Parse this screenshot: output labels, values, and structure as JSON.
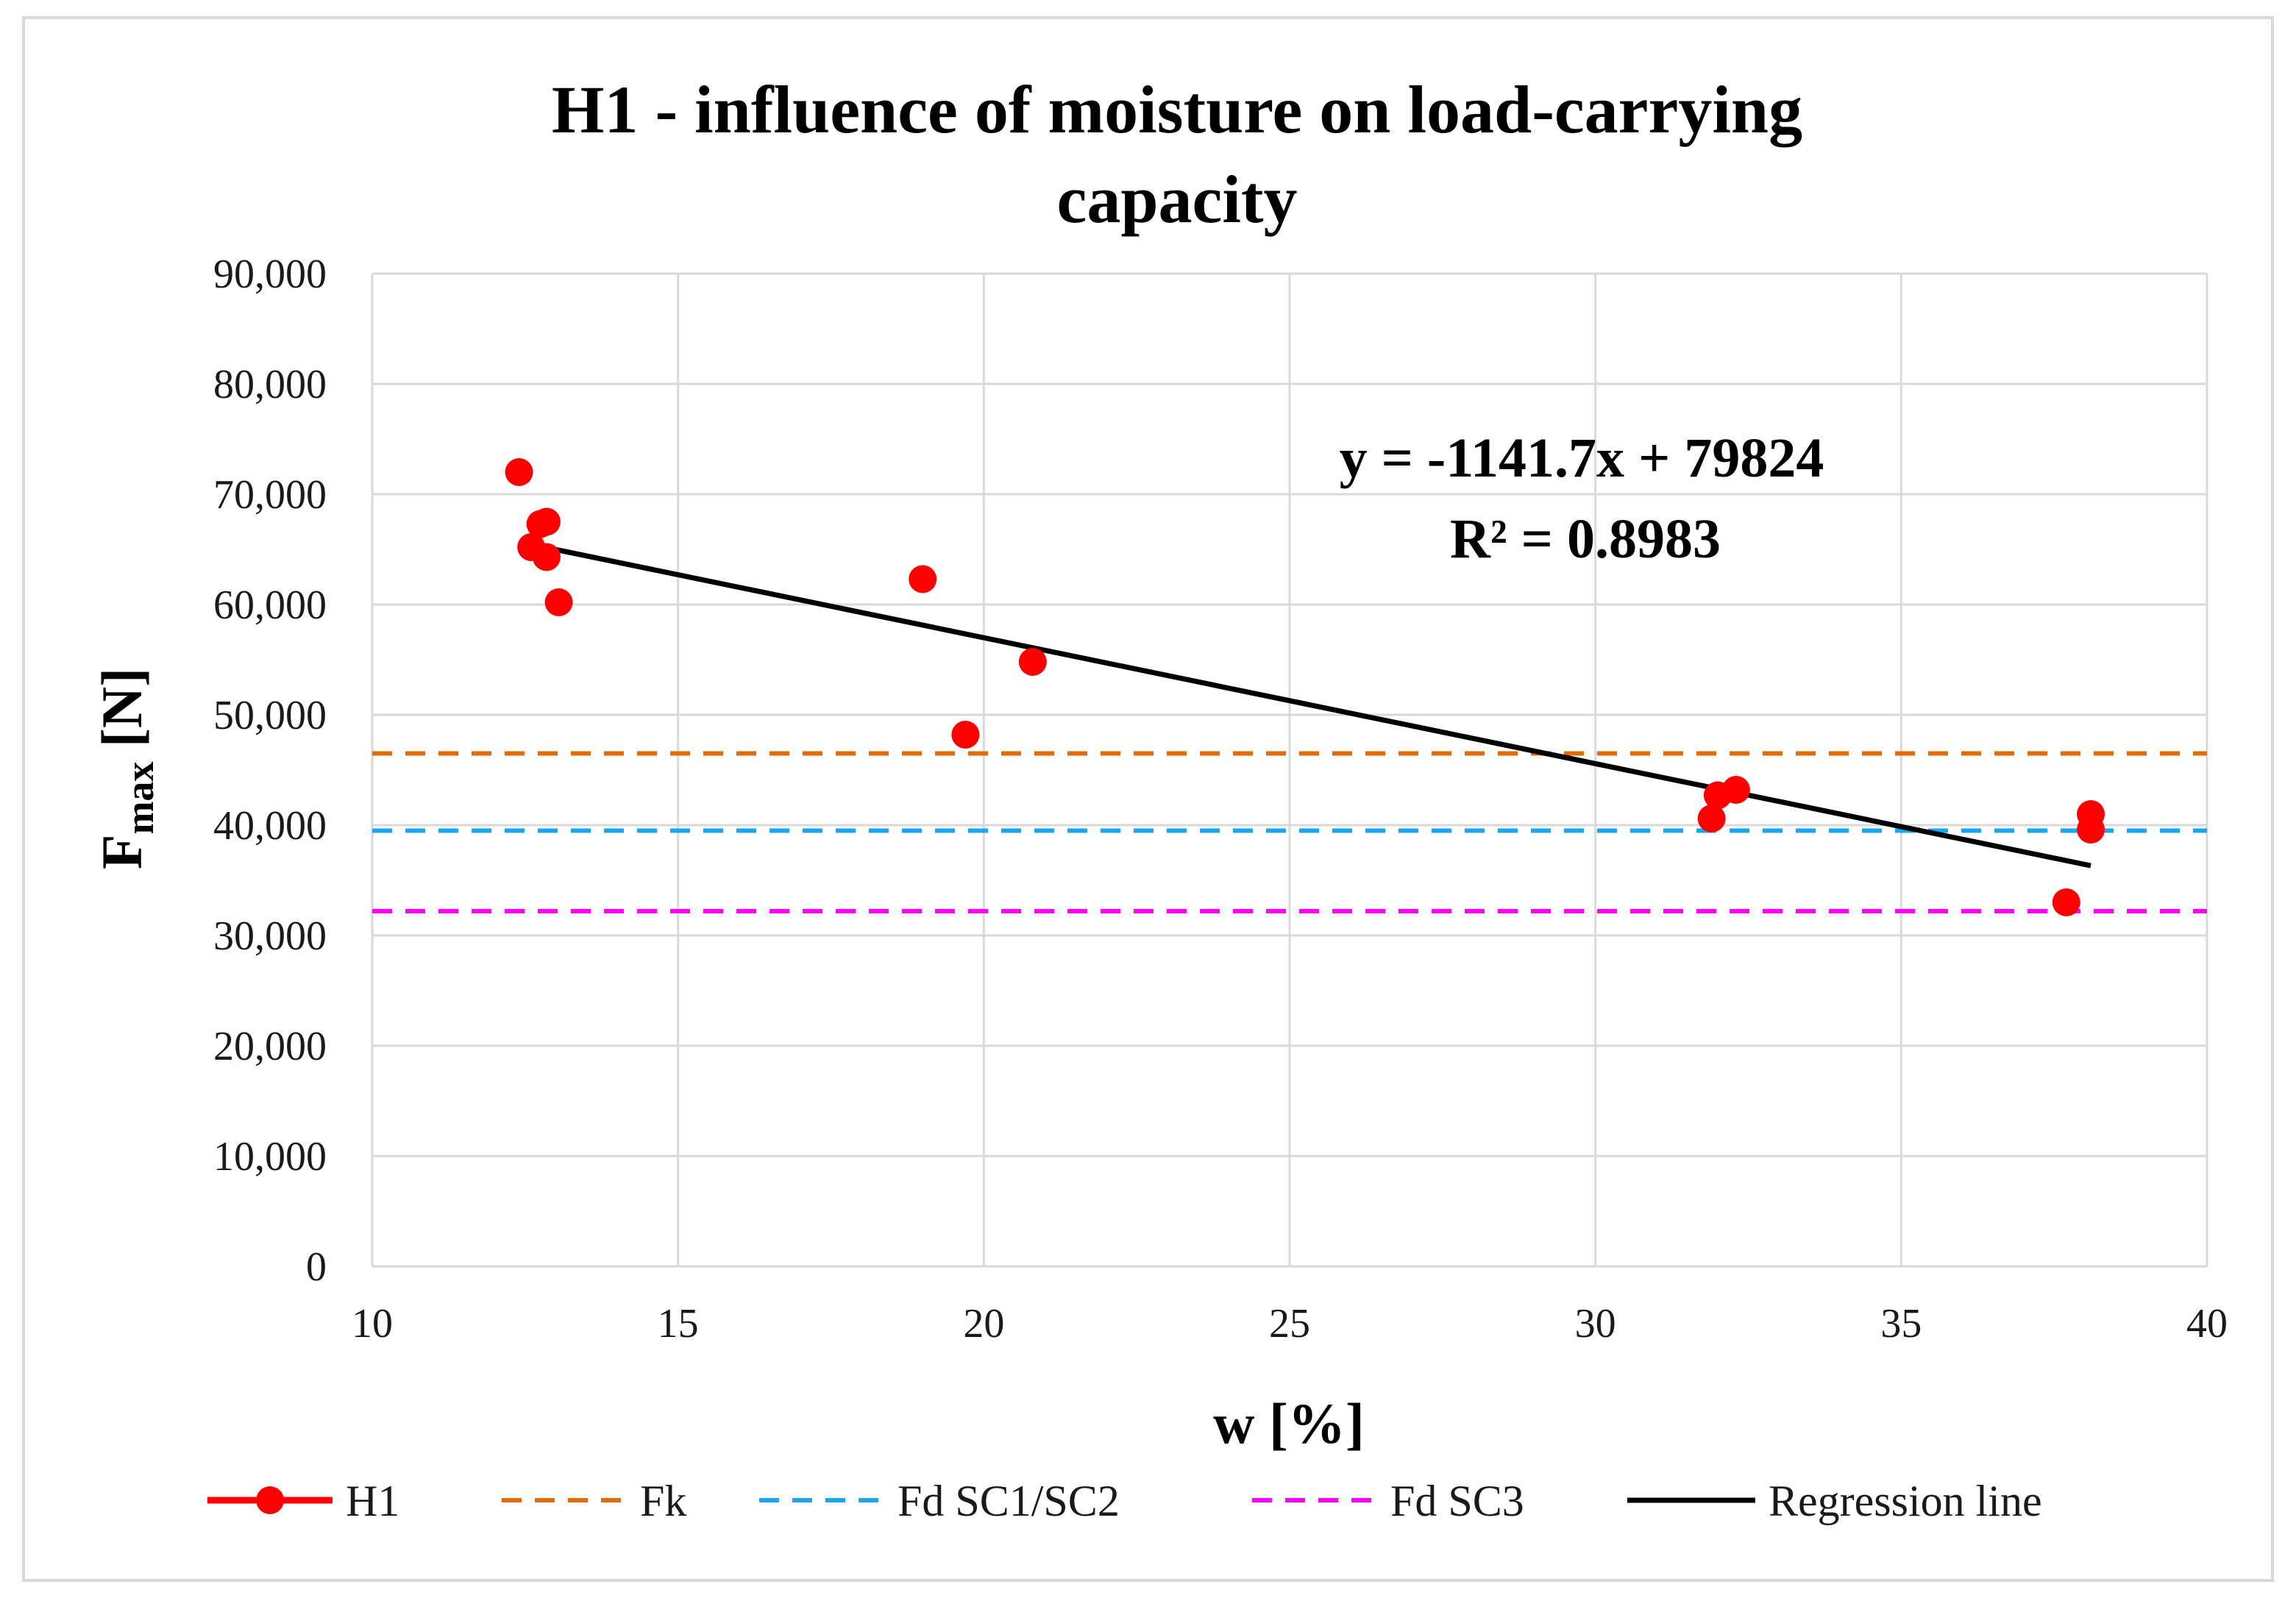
{
  "chart_data": {
    "type": "scatter",
    "title_lines": [
      "H1 - influence of moisture on load-carrying",
      "capacity"
    ],
    "xlabel": "w [%]",
    "ylabel_main": "F",
    "ylabel_sub": "max",
    "ylabel_unit": " [N]",
    "xlim": [
      10,
      40
    ],
    "ylim": [
      0,
      90000
    ],
    "x_ticks": [
      10,
      15,
      20,
      25,
      30,
      35,
      40
    ],
    "y_ticks": [
      0,
      10000,
      20000,
      30000,
      40000,
      50000,
      60000,
      70000,
      80000,
      90000
    ],
    "x_tick_labels": [
      "10",
      "15",
      "20",
      "25",
      "30",
      "35",
      "40"
    ],
    "y_tick_labels": [
      "0",
      "10,000",
      "20,000",
      "30,000",
      "40,000",
      "50,000",
      "60,000",
      "70,000",
      "80,000",
      "90,000"
    ],
    "grid": true,
    "scatter": {
      "name": "H1",
      "color": "#ff0000",
      "points": [
        {
          "x": 12.4,
          "y": 72000
        },
        {
          "x": 12.6,
          "y": 65200
        },
        {
          "x": 12.75,
          "y": 67300
        },
        {
          "x": 12.85,
          "y": 67500
        },
        {
          "x": 12.85,
          "y": 64300
        },
        {
          "x": 13.05,
          "y": 60200
        },
        {
          "x": 19.0,
          "y": 62300
        },
        {
          "x": 19.7,
          "y": 48200
        },
        {
          "x": 20.8,
          "y": 54800
        },
        {
          "x": 31.9,
          "y": 40600
        },
        {
          "x": 32.0,
          "y": 42700
        },
        {
          "x": 32.3,
          "y": 43200
        },
        {
          "x": 37.7,
          "y": 33000
        },
        {
          "x": 38.1,
          "y": 39600
        },
        {
          "x": 38.1,
          "y": 41000
        }
      ]
    },
    "reference_lines": [
      {
        "name": "Fk",
        "y": 46500,
        "color": "#e26b0a"
      },
      {
        "name": "Fd SC1/SC2",
        "y": 39500,
        "color": "#1aa6f0"
      },
      {
        "name": "Fd SC3",
        "y": 32200,
        "color": "#ff00ff"
      }
    ],
    "regression": {
      "name": "Regression line",
      "slope": -1141.7,
      "intercept": 79824,
      "x_range": [
        12.4,
        38.1
      ],
      "color": "#000000",
      "equation_label": "y = -1141.7x + 79824",
      "r2_label": "R² = 0.8983"
    },
    "legend": {
      "position": "bottom",
      "entries": [
        "H1",
        "Fk",
        "Fd SC1/SC2",
        "Fd SC3",
        "Regression line"
      ]
    }
  }
}
